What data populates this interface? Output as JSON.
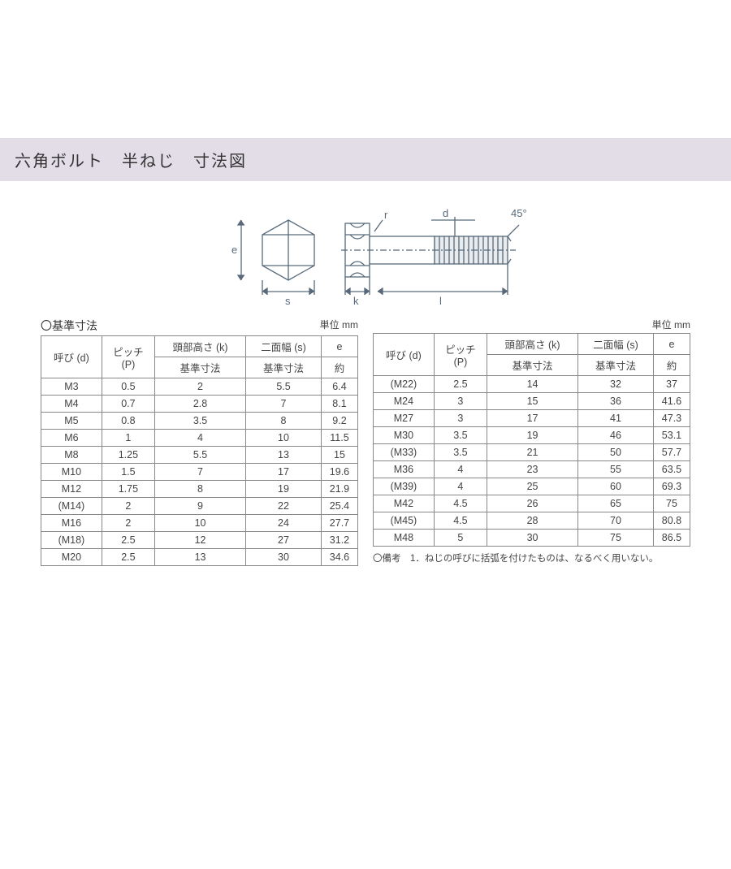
{
  "title": "六角ボルト　半ねじ　寸法図",
  "diagram": {
    "labels": {
      "e": "e",
      "s": "s",
      "k": "k",
      "l": "l",
      "d": "d",
      "r": "r",
      "angle": "45°"
    },
    "stroke": "#586a7a",
    "fill_body": "#ffffff",
    "thread_fill": "#e8ecef"
  },
  "left_table": {
    "heading": "〇基準寸法",
    "unit": "単位 mm",
    "columns": {
      "c1": "呼び (d)",
      "c2": "ピッチ\n(P)",
      "c3a": "頭部高さ (k)",
      "c3b": "基準寸法",
      "c4a": "二面幅 (s)",
      "c4b": "基準寸法",
      "c5a": "e",
      "c5b": "約"
    },
    "rows": [
      [
        "M3",
        "0.5",
        "2",
        "5.5",
        "6.4"
      ],
      [
        "M4",
        "0.7",
        "2.8",
        "7",
        "8.1"
      ],
      [
        "M5",
        "0.8",
        "3.5",
        "8",
        "9.2"
      ],
      [
        "M6",
        "1",
        "4",
        "10",
        "11.5"
      ],
      [
        "M8",
        "1.25",
        "5.5",
        "13",
        "15"
      ],
      [
        "M10",
        "1.5",
        "7",
        "17",
        "19.6"
      ],
      [
        "M12",
        "1.75",
        "8",
        "19",
        "21.9"
      ],
      [
        "(M14)",
        "2",
        "9",
        "22",
        "25.4"
      ],
      [
        "M16",
        "2",
        "10",
        "24",
        "27.7"
      ],
      [
        "(M18)",
        "2.5",
        "12",
        "27",
        "31.2"
      ],
      [
        "M20",
        "2.5",
        "13",
        "30",
        "34.6"
      ]
    ]
  },
  "right_table": {
    "unit": "単位 mm",
    "columns": {
      "c1": "呼び (d)",
      "c2": "ピッチ\n(P)",
      "c3a": "頭部高さ (k)",
      "c3b": "基準寸法",
      "c4a": "二面幅 (s)",
      "c4b": "基準寸法",
      "c5a": "e",
      "c5b": "約"
    },
    "rows": [
      [
        "(M22)",
        "2.5",
        "14",
        "32",
        "37"
      ],
      [
        "M24",
        "3",
        "15",
        "36",
        "41.6"
      ],
      [
        "M27",
        "3",
        "17",
        "41",
        "47.3"
      ],
      [
        "M30",
        "3.5",
        "19",
        "46",
        "53.1"
      ],
      [
        "(M33)",
        "3.5",
        "21",
        "50",
        "57.7"
      ],
      [
        "M36",
        "4",
        "23",
        "55",
        "63.5"
      ],
      [
        "(M39)",
        "4",
        "25",
        "60",
        "69.3"
      ],
      [
        "M42",
        "4.5",
        "26",
        "65",
        "75"
      ],
      [
        "(M45)",
        "4.5",
        "28",
        "70",
        "80.8"
      ],
      [
        "M48",
        "5",
        "30",
        "75",
        "86.5"
      ]
    ],
    "note": "〇備考　1．ねじの呼びに括弧を付けたものは、なるべく用いない。"
  }
}
